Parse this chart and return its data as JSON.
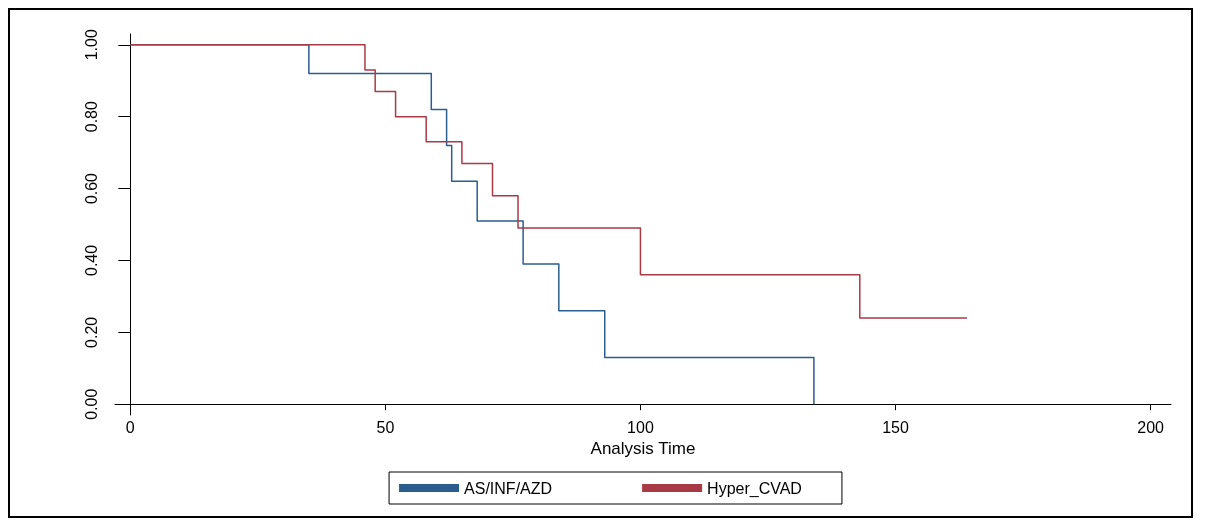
{
  "chart_data": {
    "type": "step",
    "xlabel": "Analysis Time",
    "xlim": [
      -3,
      204
    ],
    "xticks": [
      0,
      50,
      100,
      150,
      200
    ],
    "ylim": [
      -0.03,
      1.03
    ],
    "yticks": [
      {
        "value": 0,
        "label": "0.00"
      },
      {
        "value": 0.2,
        "label": "0.20"
      },
      {
        "value": 0.4,
        "label": "0.40"
      },
      {
        "value": 0.6,
        "label": "0.60"
      },
      {
        "value": 0.8,
        "label": "0.80"
      },
      {
        "value": 1,
        "label": "1.00"
      }
    ],
    "grid": false,
    "legend": "bottom",
    "marker": "none",
    "line_style": "solid",
    "series": [
      {
        "name": "AS/INF/AZD",
        "color": "#2b5d8e",
        "x": [
          0,
          35,
          59,
          62,
          63,
          68,
          77,
          84,
          93,
          134
        ],
        "values": [
          1,
          0.92,
          0.82,
          0.72,
          0.62,
          0.51,
          0.39,
          0.26,
          0.13,
          0
        ]
      },
      {
        "name": "Hyper_CVAD",
        "color": "#a83a46",
        "x": [
          0,
          46,
          48,
          52,
          58,
          65,
          71,
          76,
          100,
          143,
          164
        ],
        "values": [
          1,
          0.93,
          0.87,
          0.8,
          0.73,
          0.67,
          0.58,
          0.49,
          0.36,
          0.24,
          0.24
        ]
      }
    ]
  }
}
